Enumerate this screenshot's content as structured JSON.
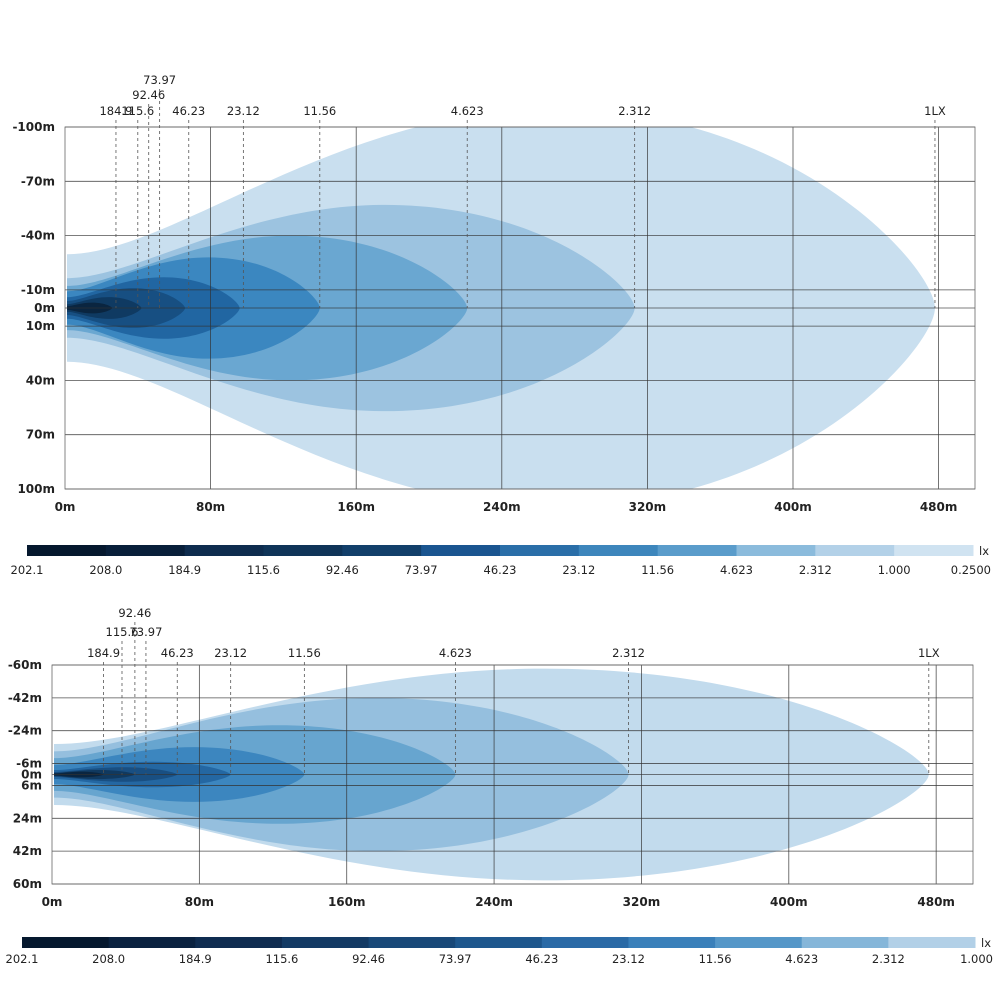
{
  "chart_data": [
    {
      "type": "heatmap",
      "title": "",
      "x_ticks": [
        "0m",
        "80m",
        "160m",
        "240m",
        "320m",
        "400m",
        "480m"
      ],
      "x_values": [
        0,
        80,
        160,
        240,
        320,
        400,
        480
      ],
      "xlim": [
        0,
        500
      ],
      "y_ticks": [
        "-100m",
        "-70m",
        "-40m",
        "-10m",
        "0m",
        "10m",
        "40m",
        "70m",
        "100m"
      ],
      "y_values": [
        -100,
        -70,
        -40,
        -10,
        0,
        10,
        40,
        70,
        100
      ],
      "ylim": [
        -100,
        100
      ],
      "contours": [
        {
          "lux": 1.0,
          "reach_m": 478,
          "half_width_m": 110,
          "color": "#c9dfef"
        },
        {
          "lux": 2.312,
          "reach_m": 313,
          "half_width_m": 57,
          "color": "#9cc3e0"
        },
        {
          "lux": 4.623,
          "reach_m": 221,
          "half_width_m": 40,
          "color": "#6aa7d1"
        },
        {
          "lux": 11.56,
          "reach_m": 140,
          "half_width_m": 28,
          "color": "#3b87c0"
        },
        {
          "lux": 23.12,
          "reach_m": 96,
          "half_width_m": 17,
          "color": "#2166a2"
        },
        {
          "lux": 46.23,
          "reach_m": 66,
          "half_width_m": 11,
          "color": "#174f82"
        },
        {
          "lux": 92.46,
          "reach_m": 42,
          "half_width_m": 6,
          "color": "#0f3a62"
        },
        {
          "lux": 184.9,
          "reach_m": 26,
          "half_width_m": 3,
          "color": "#0a2540"
        }
      ],
      "top_markers": [
        {
          "label": "184.9",
          "x": 28,
          "row": 0
        },
        {
          "label": "115.6",
          "x": 40,
          "row": 0
        },
        {
          "label": "92.46",
          "x": 46,
          "row": 1
        },
        {
          "label": "73.97",
          "x": 52,
          "row": 2
        },
        {
          "label": "46.23",
          "x": 68,
          "row": 0
        },
        {
          "label": "23.12",
          "x": 98,
          "row": 0
        },
        {
          "label": "11.56",
          "x": 140,
          "row": 0
        },
        {
          "label": "4.623",
          "x": 221,
          "row": 0
        },
        {
          "label": "2.312",
          "x": 313,
          "row": 0
        },
        {
          "label": "1LX",
          "x": 478,
          "row": 0
        }
      ],
      "legend": {
        "unit": "lx",
        "colors": [
          "#05182e",
          "#081f3a",
          "#0e2c4e",
          "#0f3458",
          "#123f6a",
          "#1a5590",
          "#2a6ea8",
          "#3d86bc",
          "#5a9ccb",
          "#8bbbdc",
          "#b3d1e8",
          "#d0e3f1"
        ],
        "labels": [
          "202.1",
          "208.0",
          "184.9",
          "115.6",
          "92.46",
          "73.97",
          "46.23",
          "23.12",
          "11.56",
          "4.623",
          "2.312",
          "1.000",
          "0.2500"
        ]
      }
    },
    {
      "type": "heatmap",
      "title": "",
      "x_ticks": [
        "0m",
        "80m",
        "160m",
        "240m",
        "320m",
        "400m",
        "480m"
      ],
      "x_values": [
        0,
        80,
        160,
        240,
        320,
        400,
        480
      ],
      "xlim": [
        0,
        500
      ],
      "y_ticks": [
        "-60m",
        "-42m",
        "-24m",
        "-6m",
        "0m",
        "6m",
        "24m",
        "42m",
        "60m"
      ],
      "y_values": [
        -60,
        -42,
        -24,
        -6,
        0,
        6,
        24,
        42,
        60
      ],
      "ylim": [
        -60,
        60
      ],
      "contours": [
        {
          "lux": 1.0,
          "reach_m": 476,
          "half_width_m": 58,
          "color": "#c2dbed"
        },
        {
          "lux": 2.312,
          "reach_m": 313,
          "half_width_m": 42,
          "color": "#95bfde"
        },
        {
          "lux": 4.623,
          "reach_m": 219,
          "half_width_m": 27,
          "color": "#67a5cf"
        },
        {
          "lux": 11.56,
          "reach_m": 137,
          "half_width_m": 15,
          "color": "#3c86bf"
        },
        {
          "lux": 23.12,
          "reach_m": 97,
          "half_width_m": 7,
          "color": "#2467a2"
        },
        {
          "lux": 46.23,
          "reach_m": 68,
          "half_width_m": 4,
          "color": "#194f82"
        },
        {
          "lux": 92.46,
          "reach_m": 45,
          "half_width_m": 2.5,
          "color": "#10395f"
        },
        {
          "lux": 184.9,
          "reach_m": 28,
          "half_width_m": 1.5,
          "color": "#0a2540"
        }
      ],
      "top_markers": [
        {
          "label": "184.9",
          "x": 28,
          "row": 0
        },
        {
          "label": "115.6",
          "x": 38,
          "row": 1
        },
        {
          "label": "92.46",
          "x": 45,
          "row": 2
        },
        {
          "label": "73.97",
          "x": 51,
          "row": 1
        },
        {
          "label": "46.23",
          "x": 68,
          "row": 0
        },
        {
          "label": "23.12",
          "x": 97,
          "row": 0
        },
        {
          "label": "11.56",
          "x": 137,
          "row": 0
        },
        {
          "label": "4.623",
          "x": 219,
          "row": 0
        },
        {
          "label": "2.312",
          "x": 313,
          "row": 0
        },
        {
          "label": "1LX",
          "x": 476,
          "row": 0
        }
      ],
      "legend": {
        "unit": "lx",
        "colors": [
          "#05182e",
          "#0a2240",
          "#0f2c50",
          "#133a64",
          "#184878",
          "#1e578d",
          "#2a6aa6",
          "#3a80ba",
          "#5597c8",
          "#85b6d9",
          "#b2d0e7"
        ],
        "labels": [
          "202.1",
          "208.0",
          "184.9",
          "115.6",
          "92.46",
          "73.97",
          "46.23",
          "23.12",
          "11.56",
          "4.623",
          "2.312",
          "1.000"
        ]
      }
    }
  ]
}
